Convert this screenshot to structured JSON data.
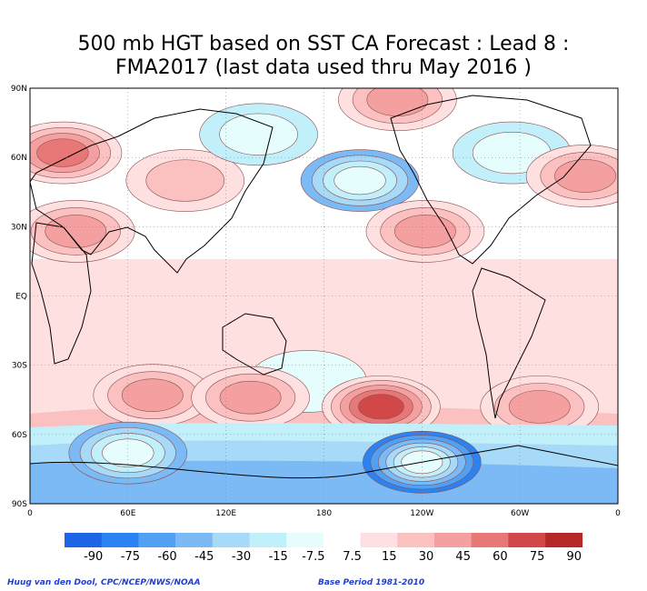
{
  "title": {
    "line1": "500 mb HGT based on SST CA Forecast : Lead 8 :",
    "line2": "FMA2017 (last data used thru May 2016 )"
  },
  "map": {
    "lat_labels": [
      "90N",
      "60N",
      "30N",
      "EQ",
      "30S",
      "60S",
      "90S"
    ],
    "lon_labels": [
      "0",
      "60E",
      "120E",
      "180",
      "120W",
      "60W",
      "0"
    ],
    "grid": true,
    "background_color": "#ffffff",
    "anomalies": [
      {
        "lon": 20,
        "lat": 62,
        "value": 45
      },
      {
        "lon": 28,
        "lat": 28,
        "value": 30
      },
      {
        "lon": 95,
        "lat": 50,
        "value": 15
      },
      {
        "lon": 140,
        "lat": 70,
        "value": -15
      },
      {
        "lon": 202,
        "lat": 50,
        "value": -45
      },
      {
        "lon": 225,
        "lat": 85,
        "value": 30
      },
      {
        "lon": 242,
        "lat": 28,
        "value": 30
      },
      {
        "lon": 295,
        "lat": 62,
        "value": -15
      },
      {
        "lon": 340,
        "lat": 52,
        "value": 30
      },
      {
        "lon": 170,
        "lat": -37,
        "value": -7.5
      },
      {
        "lon": 75,
        "lat": -43,
        "value": 30
      },
      {
        "lon": 135,
        "lat": -44,
        "value": 30
      },
      {
        "lon": 215,
        "lat": -48,
        "value": 60
      },
      {
        "lon": 312,
        "lat": -48,
        "value": 30
      },
      {
        "lon": 240,
        "lat": -72,
        "value": -75
      },
      {
        "lon": 60,
        "lat": -68,
        "value": -45
      }
    ]
  },
  "colorbar": {
    "colors": [
      "#1e64e6",
      "#2c82f0",
      "#50a0f4",
      "#7cbaf6",
      "#a6daf8",
      "#c2f0fa",
      "#e6fdfd",
      "#ffffff",
      "#ffe0e0",
      "#fbc0c0",
      "#f4a0a0",
      "#e87878",
      "#d24848",
      "#b42828"
    ],
    "labels": [
      "-90",
      "-75",
      "-60",
      "-45",
      "-30",
      "-15",
      "-7.5",
      "7.5",
      "15",
      "30",
      "45",
      "60",
      "75",
      "90"
    ]
  },
  "footer": {
    "left": "Huug van den Dool, CPC/NCEP/NWS/NOAA",
    "right": "Base Period 1981-2010"
  }
}
